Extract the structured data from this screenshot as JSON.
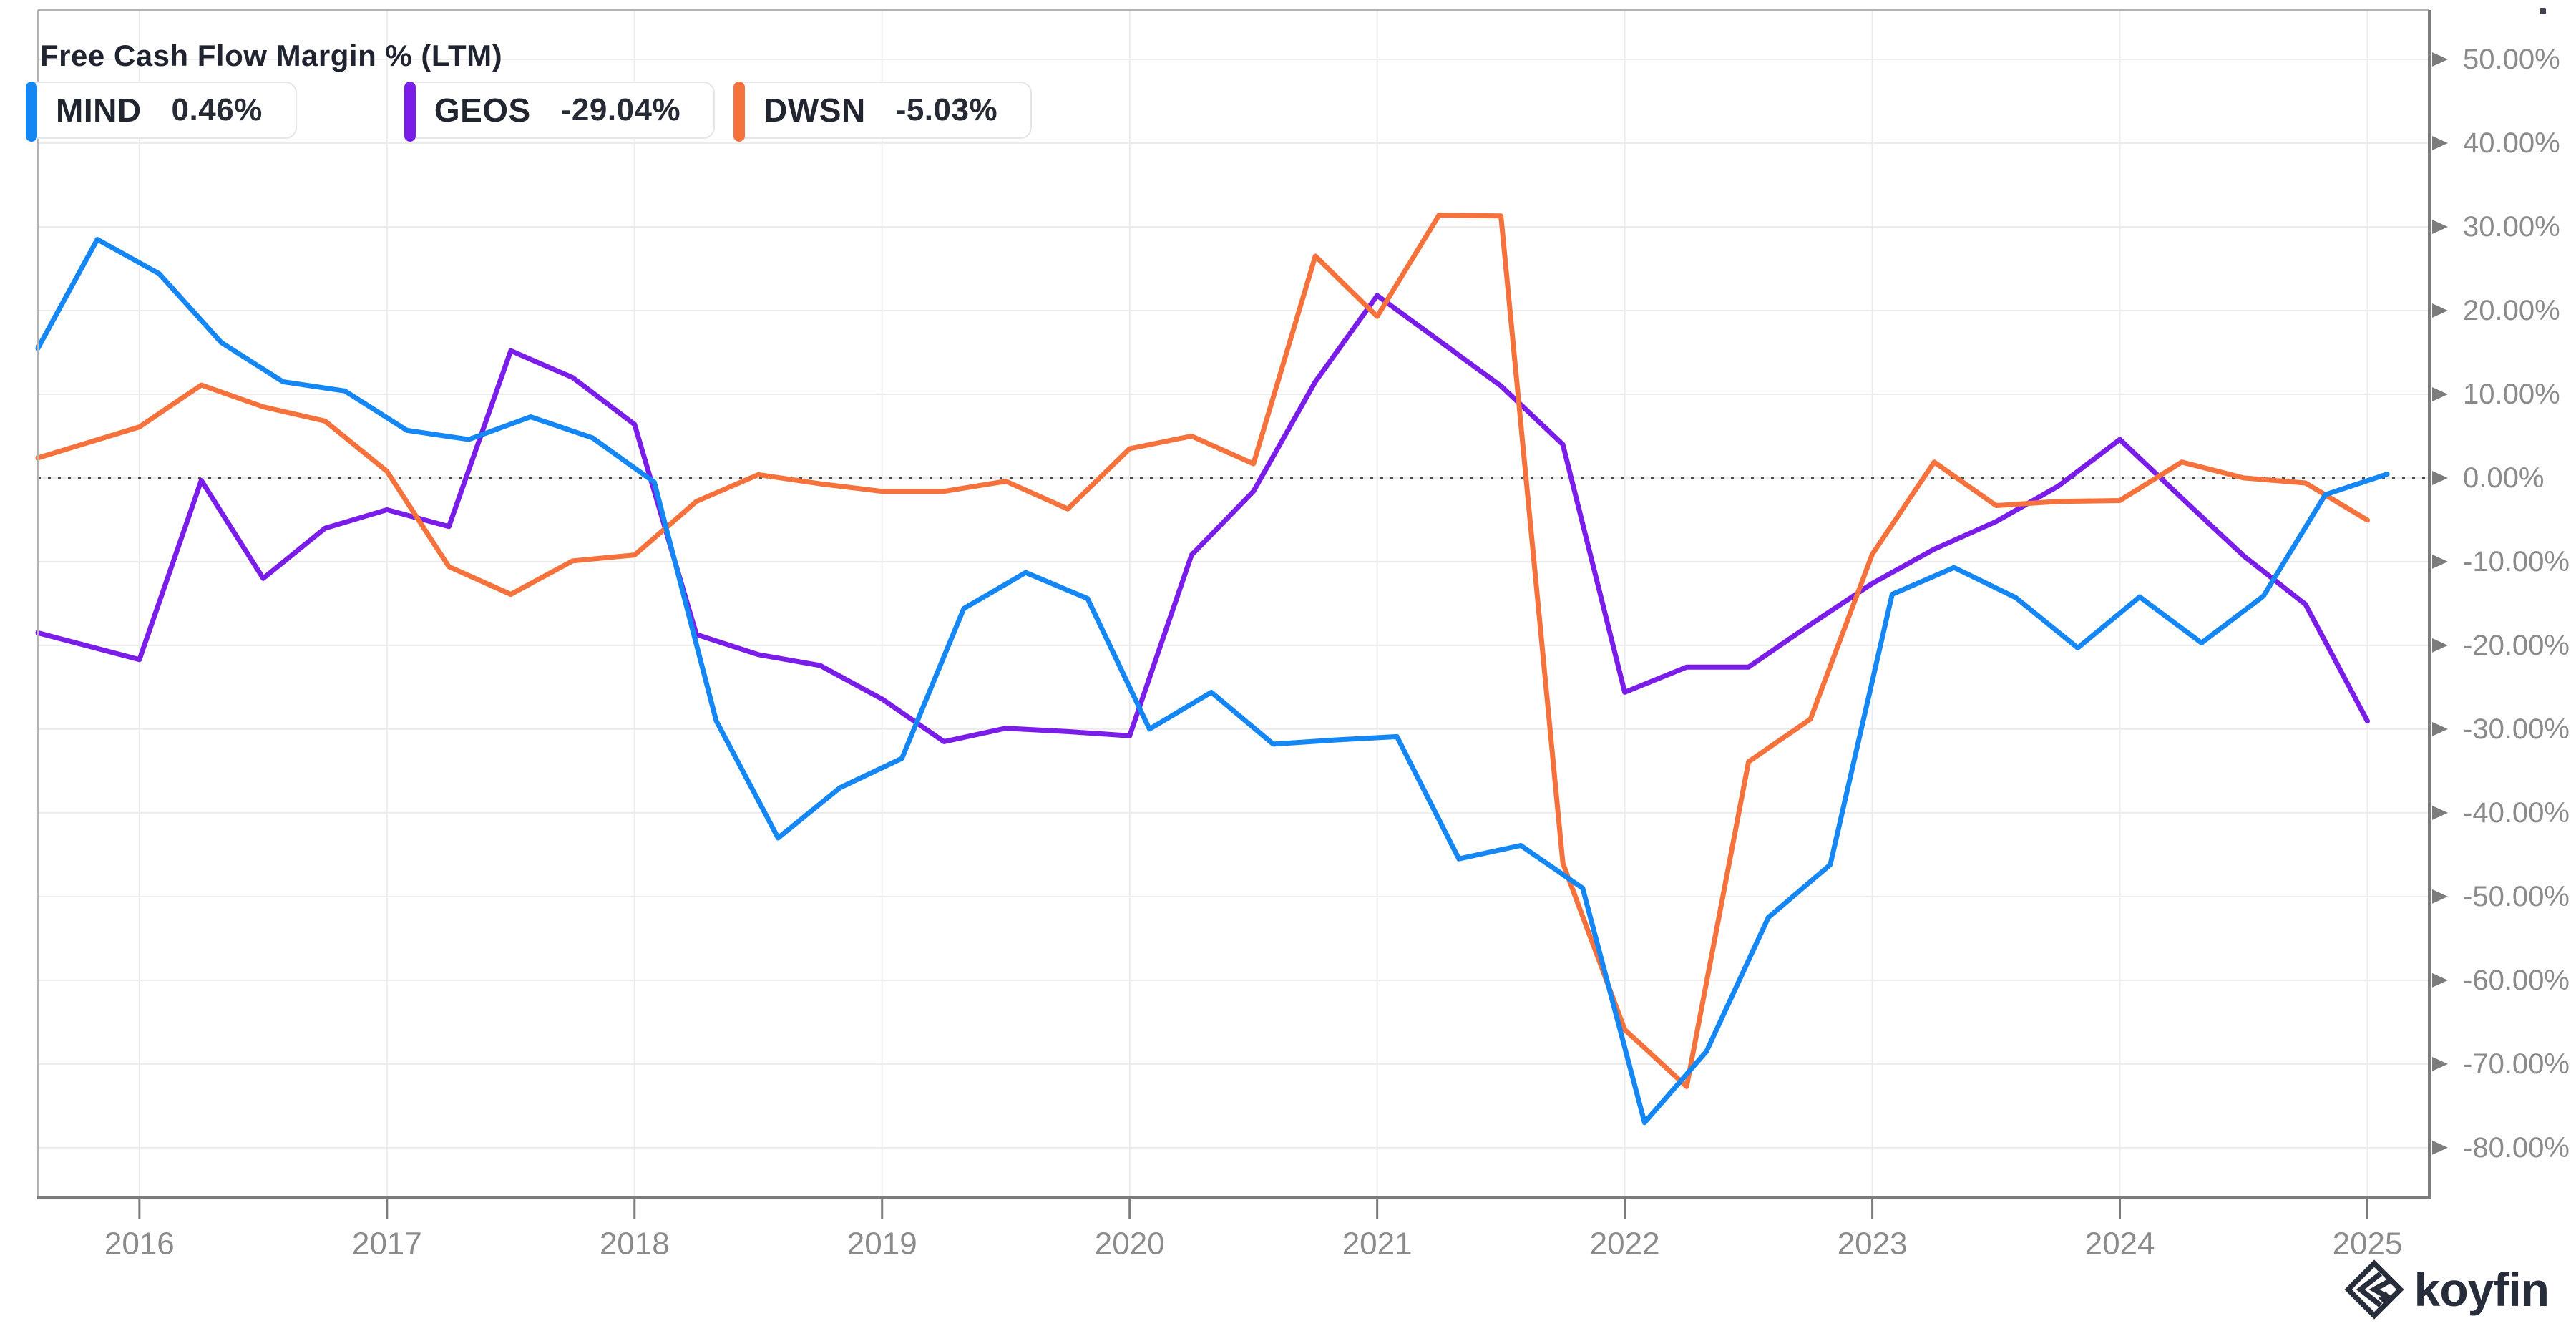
{
  "title": "Free Cash Flow Margin % (LTM)",
  "legend": [
    {
      "ticker": "MIND",
      "value": "0.46%",
      "color": "#1487f5"
    },
    {
      "ticker": "GEOS",
      "value": "-29.04%",
      "color": "#7b1de8"
    },
    {
      "ticker": "DWSN",
      "value": "-5.03%",
      "color": "#f6723c"
    }
  ],
  "watermark": {
    "text": "koyfin",
    "color": "#272d3a"
  },
  "colors": {
    "grid": "#ececec",
    "axis": "#7c7c7c",
    "border": "#b3b3b3",
    "tick_text": "#8b8b8b",
    "zero_line": "#4c4c4c",
    "title_text": "#1f2430"
  },
  "chart_data": {
    "type": "line",
    "title": "Free Cash Flow Margin % (LTM)",
    "x_domain": [
      2015.59,
      2025.25
    ],
    "ylim": [
      -86,
      55.9
    ],
    "yticks": [
      50,
      40,
      30,
      20,
      10,
      0,
      -10,
      -20,
      -30,
      -40,
      -50,
      -60,
      -70,
      -80
    ],
    "ytick_labels": [
      "50.00%",
      "40.00%",
      "30.00%",
      "20.00%",
      "10.00%",
      "0.00%",
      "-10.00%",
      "-20.00%",
      "-30.00%",
      "-40.00%",
      "-50.00%",
      "-60.00%",
      "-70.00%",
      "-80.00%"
    ],
    "xticks": [
      2016,
      2017,
      2018,
      2019,
      2020,
      2021,
      2022,
      2023,
      2024,
      2025
    ],
    "xtick_labels": [
      "2016",
      "2017",
      "2018",
      "2019",
      "2020",
      "2021",
      "2022",
      "2023",
      "2024",
      "2025"
    ],
    "grid": true,
    "zero_line_dotted": true,
    "legend_position": "top-left",
    "ylabel": "",
    "xlabel": "",
    "series": [
      {
        "name": "MIND",
        "color": "#1487f5",
        "last_value": 0.46,
        "x": [
          2015.59,
          2015.83,
          2016.08,
          2016.33,
          2016.58,
          2016.83,
          2017.08,
          2017.33,
          2017.58,
          2017.83,
          2018.08,
          2018.33,
          2018.58,
          2018.83,
          2019.08,
          2019.33,
          2019.58,
          2019.83,
          2020.08,
          2020.33,
          2020.58,
          2020.83,
          2021.08,
          2021.33,
          2021.58,
          2021.83,
          2022.08,
          2022.33,
          2022.58,
          2022.83,
          2023.08,
          2023.33,
          2023.58,
          2023.83,
          2024.08,
          2024.33,
          2024.58,
          2024.83,
          2025.08
        ],
        "values": [
          15.5,
          28.5,
          24.4,
          16.2,
          11.5,
          10.4,
          5.7,
          4.6,
          7.3,
          4.8,
          -0.5,
          -29.0,
          -43.0,
          -37.0,
          -33.5,
          -15.6,
          -11.3,
          -14.4,
          -30.0,
          -25.6,
          -31.8,
          -31.3,
          -30.9,
          -45.5,
          -43.9,
          -49.0,
          -77.0,
          -68.5,
          -52.5,
          -46.2,
          -13.9,
          -10.7,
          -14.3,
          -20.3,
          -14.2,
          -19.7,
          -14.1,
          -2.0,
          0.46
        ]
      },
      {
        "name": "GEOS",
        "color": "#7b1de8",
        "last_value": -29.04,
        "x": [
          2015.59,
          2016.0,
          2016.25,
          2016.5,
          2016.75,
          2017.0,
          2017.25,
          2017.5,
          2017.75,
          2018.0,
          2018.25,
          2018.5,
          2018.75,
          2019.0,
          2019.25,
          2019.5,
          2019.75,
          2020.0,
          2020.25,
          2020.5,
          2020.75,
          2021.0,
          2021.25,
          2021.5,
          2021.75,
          2022.0,
          2022.25,
          2022.5,
          2022.75,
          2023.0,
          2023.25,
          2023.5,
          2023.75,
          2024.0,
          2024.25,
          2024.5,
          2024.75,
          2025.0
        ],
        "values": [
          -18.5,
          -21.7,
          -0.3,
          -12.0,
          -6.0,
          -3.8,
          -5.8,
          15.2,
          12.0,
          6.4,
          -18.7,
          -21.1,
          -22.4,
          -26.4,
          -31.5,
          -29.9,
          -30.3,
          -30.8,
          -9.2,
          -1.6,
          11.5,
          21.8,
          16.4,
          11.0,
          4.0,
          -25.6,
          -22.6,
          -22.6,
          -17.5,
          -12.6,
          -8.5,
          -5.2,
          -1.0,
          4.6,
          -2.4,
          -9.3,
          -15.1,
          -29.04
        ]
      },
      {
        "name": "DWSN",
        "color": "#f6723c",
        "last_value": -5.03,
        "x": [
          2015.59,
          2016.0,
          2016.25,
          2016.5,
          2016.75,
          2017.0,
          2017.25,
          2017.5,
          2017.75,
          2018.0,
          2018.25,
          2018.5,
          2018.75,
          2019.0,
          2019.25,
          2019.5,
          2019.75,
          2020.0,
          2020.25,
          2020.5,
          2020.75,
          2021.0,
          2021.25,
          2021.5,
          2021.75,
          2022.0,
          2022.25,
          2022.5,
          2022.75,
          2023.0,
          2023.25,
          2023.5,
          2023.75,
          2024.0,
          2024.25,
          2024.5,
          2024.75,
          2025.0
        ],
        "values": [
          2.4,
          6.1,
          11.1,
          8.5,
          6.8,
          0.8,
          -10.6,
          -13.9,
          -9.9,
          -9.2,
          -2.8,
          0.4,
          -0.7,
          -1.6,
          -1.6,
          -0.4,
          -3.7,
          3.5,
          5.0,
          1.7,
          26.5,
          19.3,
          31.4,
          31.3,
          -46.0,
          -65.9,
          -72.7,
          -33.9,
          -28.8,
          -9.1,
          1.9,
          -3.3,
          -2.8,
          -2.7,
          1.9,
          0.0,
          -0.6,
          -5.03
        ]
      }
    ]
  }
}
